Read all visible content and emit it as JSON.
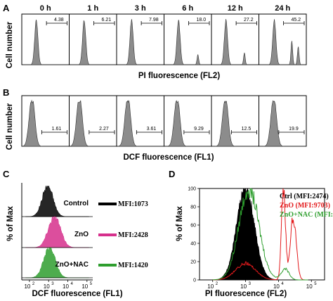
{
  "colors": {
    "gray_fill": "#8c8c8c",
    "black": "#000000",
    "pink": "#d62f8c",
    "green": "#2e9e2e",
    "red": "#e31a1c"
  },
  "chart_data": [
    {
      "panel": "A",
      "type": "area",
      "ylabel": "Cell number",
      "xlabel": "PI  fluorescence (FL2)",
      "grid": false,
      "histograms": [
        {
          "time": "0 h",
          "gate_percent": "4.38",
          "peak": 0.3,
          "tail_peaks": []
        },
        {
          "time": "1 h",
          "gate_percent": "6.21",
          "peak": 0.31,
          "tail_peaks": []
        },
        {
          "time": "3 h",
          "gate_percent": "7.98",
          "peak": 0.31,
          "tail_peaks": []
        },
        {
          "time": "6 h",
          "gate_percent": "18.0",
          "peak": 0.3,
          "tail_peaks": [
            0.72
          ]
        },
        {
          "time": "12 h",
          "gate_percent": "27.2",
          "peak": 0.3,
          "tail_peaks": [
            0.7
          ]
        },
        {
          "time": "24 h",
          "gate_percent": "45.2",
          "peak": 0.32,
          "tail_peaks": [
            0.7,
            0.84
          ]
        }
      ]
    },
    {
      "panel": "B",
      "type": "area",
      "ylabel": "Cell number",
      "xlabel": "DCF  fluorescence (FL1)",
      "grid": false,
      "histograms": [
        {
          "gate_percent": "1.61",
          "peak": 0.22
        },
        {
          "gate_percent": "2.27",
          "peak": 0.22
        },
        {
          "gate_percent": "3.61",
          "peak": 0.24
        },
        {
          "gate_percent": "9.29",
          "peak": 0.28
        },
        {
          "gate_percent": "12.5",
          "peak": 0.3
        },
        {
          "gate_percent": "19.9",
          "peak": 0.32
        }
      ]
    },
    {
      "panel": "C",
      "type": "area",
      "ylabel": "% of Max",
      "xlabel": "DCF  fluorescence (FL1)",
      "x_ticks": [
        "10",
        "10",
        "10",
        "10"
      ],
      "x_tick_exponents": [
        "2",
        "3",
        "4",
        "5"
      ],
      "x_log_range": [
        1.6,
        5.3
      ],
      "series": [
        {
          "name": "Control",
          "mfi": "MFI:1073",
          "peak_log": 2.95
        },
        {
          "name": "ZnO",
          "mfi": "MFI:2428",
          "peak_log": 3.3
        },
        {
          "name": "ZnO+NAC",
          "mfi": "MFI:1420",
          "peak_log": 3.05
        }
      ]
    },
    {
      "panel": "D",
      "type": "area",
      "ylabel": "% of Max",
      "xlabel": "PI fluorescence (FL2)",
      "y_ticks": [
        0,
        20,
        40,
        60,
        80,
        100
      ],
      "x_ticks": [
        "10",
        "10",
        "10",
        "10"
      ],
      "x_tick_exponents": [
        "2",
        "3",
        "4",
        "5"
      ],
      "x_log_range": [
        1.6,
        5.4
      ],
      "y_range": [
        0,
        100
      ],
      "legend_position": "top-right",
      "series": [
        {
          "name": "Ctrl",
          "mfi": "(MFI:2474)",
          "label": "Ctrl (MFI:2474)",
          "peak_log": 3.0
        },
        {
          "name": "ZnO",
          "mfi": "(MFI:9703)",
          "label": "ZnO (MFI:9703)",
          "peak_log": 4.15
        },
        {
          "name": "ZnO+NAC",
          "mfi": "(MFI:5109)",
          "label": "ZnO+NAC (MFI:5109)",
          "peak_log": 3.1
        }
      ]
    }
  ]
}
